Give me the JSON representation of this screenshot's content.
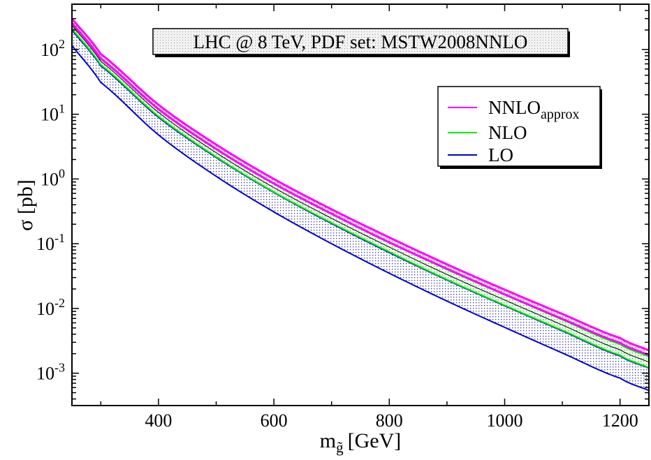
{
  "chart_data": {
    "type": "line",
    "title": "LHC @ 8 TeV, PDF set: MSTW2008NNLO",
    "xlabel": "m",
    "xlabel_sub": "g̃",
    "xlabel_unit": "[GeV]",
    "ylabel": "σ [pb]",
    "xlim": [
      250,
      1250
    ],
    "ylim_log10": [
      -3.5,
      2.7
    ],
    "yscale": "log",
    "x_ticks": [
      {
        "value": 400,
        "label": "400"
      },
      {
        "value": 600,
        "label": "600"
      },
      {
        "value": 800,
        "label": "800"
      },
      {
        "value": 1000,
        "label": "1000"
      },
      {
        "value": 1200,
        "label": "1200"
      }
    ],
    "y_ticks": [
      {
        "exp": 2,
        "base": "10",
        "sup": "2"
      },
      {
        "exp": 1,
        "base": "10",
        "sup": "1"
      },
      {
        "exp": 0,
        "base": "10",
        "sup": "0"
      },
      {
        "exp": -1,
        "base": "10",
        "sup": "-1"
      },
      {
        "exp": -2,
        "base": "10",
        "sup": "-2"
      },
      {
        "exp": -3,
        "base": "10",
        "sup": "-3"
      }
    ],
    "legend": [
      {
        "label": "NNLO",
        "sub": "approx",
        "color": "#ff00ff"
      },
      {
        "label": "NLO",
        "color": "#00ee00"
      },
      {
        "label": "LO",
        "color": "#0000cc"
      }
    ],
    "x": [
      250,
      300,
      400,
      500,
      600,
      700,
      800,
      900,
      1000,
      1100,
      1200,
      1250
    ],
    "series": [
      {
        "name": "NNLO_approx",
        "color": "#ff00ff",
        "upper": [
          300,
          85,
          14,
          3.4,
          1.0,
          0.34,
          0.125,
          0.048,
          0.0195,
          0.0082,
          0.0035,
          0.00225
        ],
        "lower": [
          255,
          72,
          12,
          2.9,
          0.85,
          0.29,
          0.105,
          0.041,
          0.0165,
          0.0069,
          0.00295,
          0.0019
        ]
      },
      {
        "name": "NLO",
        "color": "#00ee00",
        "upper": [
          265,
          74,
          12.3,
          2.95,
          0.86,
          0.29,
          0.105,
          0.04,
          0.0163,
          0.0067,
          0.0028,
          0.0018
        ],
        "lower": [
          210,
          58,
          9.3,
          2.2,
          0.63,
          0.21,
          0.075,
          0.028,
          0.0112,
          0.0046,
          0.0019,
          0.00122
        ]
      },
      {
        "name": "LO",
        "color": "#0000cc",
        "upper": [
          200,
          56,
          9.0,
          2.15,
          0.62,
          0.205,
          0.073,
          0.0275,
          0.011,
          0.0045,
          0.00185,
          0.0012
        ],
        "lower": [
          115,
          31,
          4.8,
          1.1,
          0.31,
          0.1,
          0.035,
          0.013,
          0.0051,
          0.00205,
          0.00084,
          0.00054
        ]
      }
    ]
  }
}
